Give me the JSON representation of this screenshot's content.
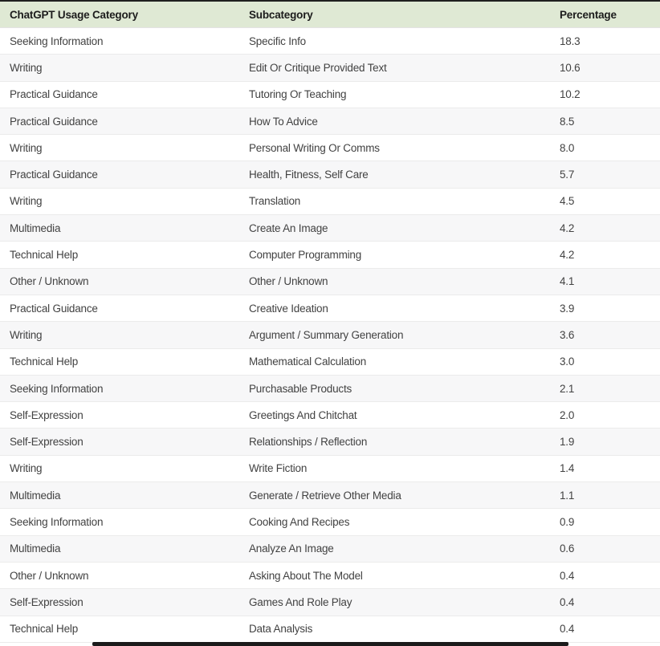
{
  "table": {
    "columns": [
      {
        "label": "ChatGPT Usage Category"
      },
      {
        "label": "Subcategory"
      },
      {
        "label": "Percentage"
      }
    ],
    "rows": [
      {
        "category": "Seeking Information",
        "subcategory": "Specific Info",
        "percentage": "18.3"
      },
      {
        "category": "Writing",
        "subcategory": "Edit Or Critique Provided Text",
        "percentage": "10.6"
      },
      {
        "category": "Practical Guidance",
        "subcategory": "Tutoring Or Teaching",
        "percentage": "10.2"
      },
      {
        "category": "Practical Guidance",
        "subcategory": "How To Advice",
        "percentage": "8.5"
      },
      {
        "category": "Writing",
        "subcategory": "Personal Writing Or Comms",
        "percentage": "8.0"
      },
      {
        "category": "Practical Guidance",
        "subcategory": "Health, Fitness, Self Care",
        "percentage": "5.7"
      },
      {
        "category": "Writing",
        "subcategory": "Translation",
        "percentage": "4.5"
      },
      {
        "category": "Multimedia",
        "subcategory": "Create An Image",
        "percentage": "4.2"
      },
      {
        "category": "Technical Help",
        "subcategory": "Computer Programming",
        "percentage": "4.2"
      },
      {
        "category": "Other / Unknown",
        "subcategory": "Other / Unknown",
        "percentage": "4.1"
      },
      {
        "category": "Practical Guidance",
        "subcategory": "Creative Ideation",
        "percentage": "3.9"
      },
      {
        "category": "Writing",
        "subcategory": "Argument / Summary Generation",
        "percentage": "3.6"
      },
      {
        "category": "Technical Help",
        "subcategory": "Mathematical Calculation",
        "percentage": "3.0"
      },
      {
        "category": "Seeking Information",
        "subcategory": "Purchasable Products",
        "percentage": "2.1"
      },
      {
        "category": "Self-Expression",
        "subcategory": "Greetings And Chitchat",
        "percentage": "2.0"
      },
      {
        "category": "Self-Expression",
        "subcategory": "Relationships / Reflection",
        "percentage": "1.9"
      },
      {
        "category": "Writing",
        "subcategory": "Write Fiction",
        "percentage": "1.4"
      },
      {
        "category": "Multimedia",
        "subcategory": "Generate / Retrieve Other Media",
        "percentage": "1.1"
      },
      {
        "category": "Seeking Information",
        "subcategory": "Cooking And Recipes",
        "percentage": "0.9"
      },
      {
        "category": "Multimedia",
        "subcategory": "Analyze An Image",
        "percentage": "0.6"
      },
      {
        "category": "Other / Unknown",
        "subcategory": "Asking About The Model",
        "percentage": "0.4"
      },
      {
        "category": "Self-Expression",
        "subcategory": "Games And Role Play",
        "percentage": "0.4"
      },
      {
        "category": "Technical Help",
        "subcategory": "Data Analysis",
        "percentage": "0.4"
      }
    ]
  },
  "colors": {
    "header_background": "#dfe9d4",
    "header_text": "#1c1c1c",
    "top_border": "#1f1f1f",
    "row_text": "#424242",
    "stripe_background": "#f7f7f8",
    "row_divider": "#ebebeb",
    "scrollbar_thumb": "#1b1b1b"
  },
  "chart_data": {
    "type": "table",
    "title": "",
    "columns": [
      "ChatGPT Usage Category",
      "Subcategory",
      "Percentage"
    ],
    "categories": [
      "Specific Info",
      "Edit Or Critique Provided Text",
      "Tutoring Or Teaching",
      "How To Advice",
      "Personal Writing Or Comms",
      "Health, Fitness, Self Care",
      "Translation",
      "Create An Image",
      "Computer Programming",
      "Other / Unknown",
      "Creative Ideation",
      "Argument / Summary Generation",
      "Mathematical Calculation",
      "Purchasable Products",
      "Greetings And Chitchat",
      "Relationships / Reflection",
      "Write Fiction",
      "Generate / Retrieve Other Media",
      "Cooking And Recipes",
      "Analyze An Image",
      "Asking About The Model",
      "Games And Role Play",
      "Data Analysis"
    ],
    "groups": [
      "Seeking Information",
      "Writing",
      "Practical Guidance",
      "Practical Guidance",
      "Writing",
      "Practical Guidance",
      "Writing",
      "Multimedia",
      "Technical Help",
      "Other / Unknown",
      "Practical Guidance",
      "Writing",
      "Technical Help",
      "Seeking Information",
      "Self-Expression",
      "Self-Expression",
      "Writing",
      "Multimedia",
      "Seeking Information",
      "Multimedia",
      "Other / Unknown",
      "Self-Expression",
      "Technical Help"
    ],
    "values": [
      18.3,
      10.6,
      10.2,
      8.5,
      8.0,
      5.7,
      4.5,
      4.2,
      4.2,
      4.1,
      3.9,
      3.6,
      3.0,
      2.1,
      2.0,
      1.9,
      1.4,
      1.1,
      0.9,
      0.6,
      0.4,
      0.4,
      0.4
    ],
    "layout": {
      "zebra_striping": true,
      "sorted_by": "Percentage desc"
    }
  }
}
